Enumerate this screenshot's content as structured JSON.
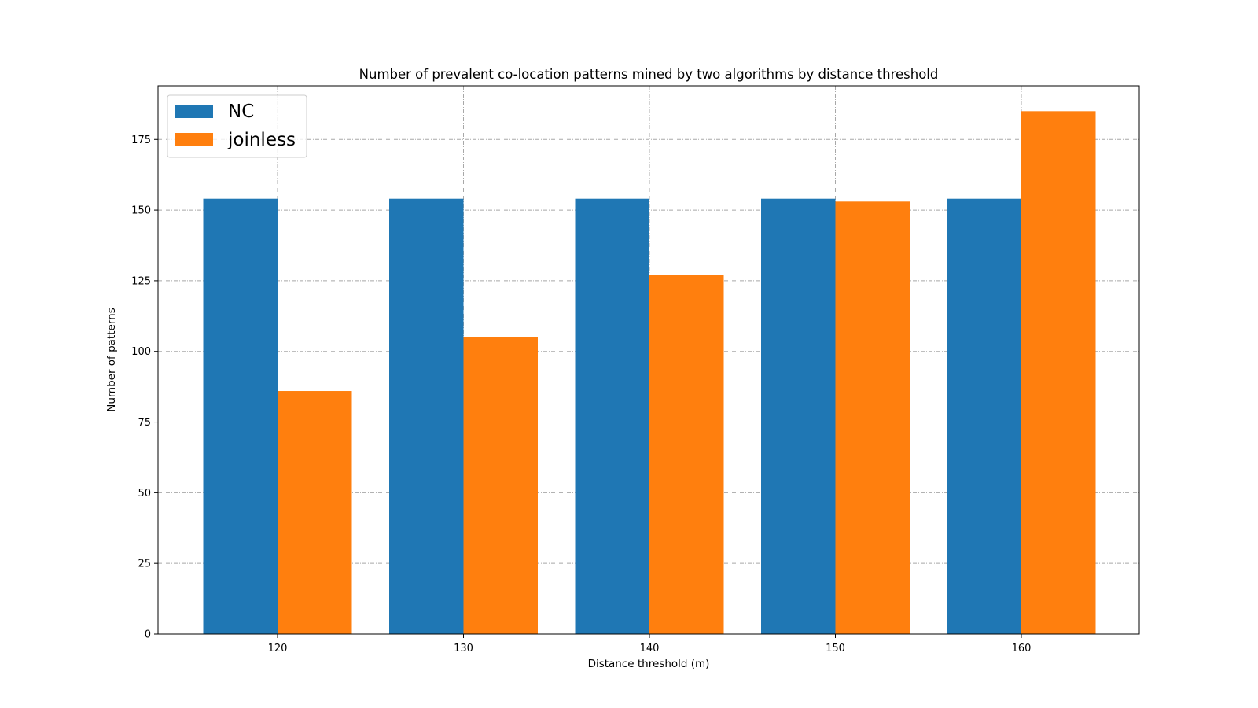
{
  "chart_data": {
    "type": "bar",
    "title": "Number of prevalent co-location patterns mined by two algorithms by distance threshold",
    "xlabel": "Distance threshold (m)",
    "ylabel": "Number of patterns",
    "categories": [
      "120",
      "130",
      "140",
      "150",
      "160"
    ],
    "series": [
      {
        "name": "NC",
        "values": [
          154,
          154,
          154,
          154,
          154
        ],
        "color": "#1f77b4"
      },
      {
        "name": "joinless",
        "values": [
          86,
          105,
          127,
          153,
          185
        ],
        "color": "#ff7f0e"
      }
    ],
    "ylim": [
      0,
      194
    ],
    "yticks": [
      0,
      25,
      50,
      75,
      100,
      125,
      150,
      175
    ],
    "grid": true,
    "legend": "top-left"
  }
}
